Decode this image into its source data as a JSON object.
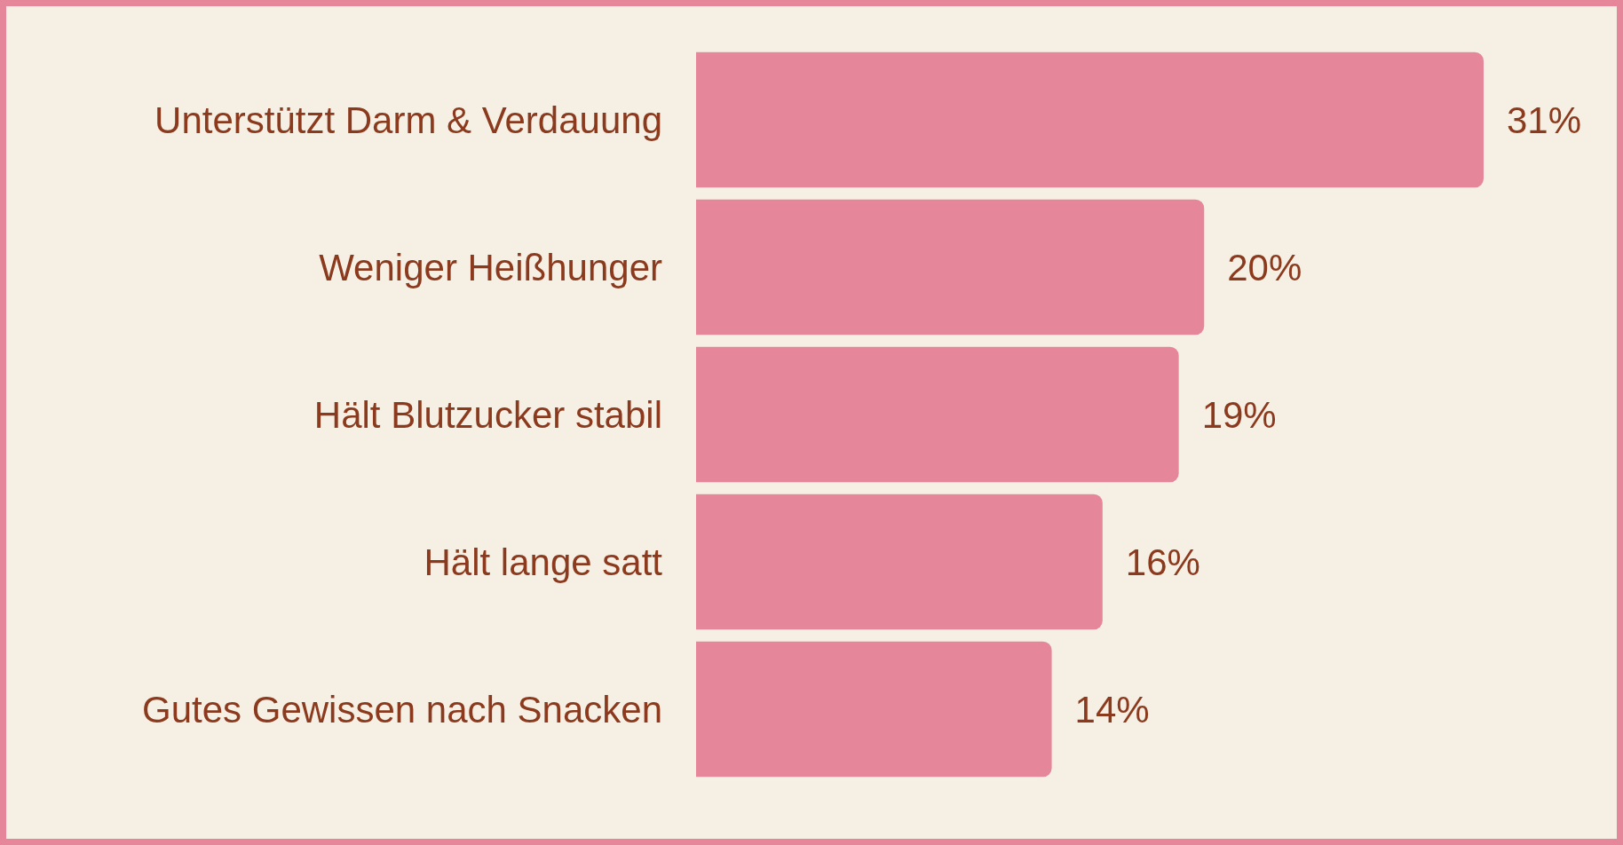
{
  "chart_data": {
    "type": "bar",
    "orientation": "horizontal",
    "categories": [
      "Unterstützt Darm & Verdauung",
      "Weniger Heißhunger",
      "Hält Blutzucker stabil",
      "Hält lange satt",
      "Gutes Gewissen nach Snacken"
    ],
    "values": [
      31,
      20,
      19,
      16,
      14
    ],
    "value_labels": [
      "31%",
      "20%",
      "19%",
      "16%",
      "14%"
    ],
    "color": "#e6869a",
    "tick_labels": "y"
  }
}
